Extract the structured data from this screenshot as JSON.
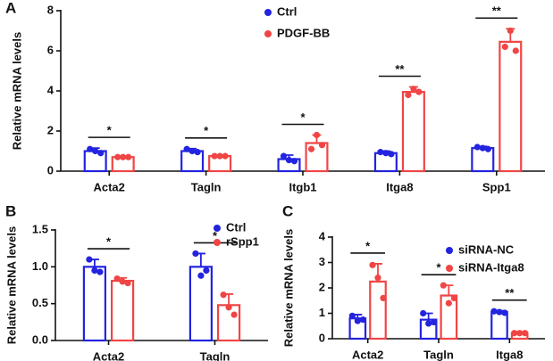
{
  "chart_data": [
    {
      "type": "bar",
      "panel": "A",
      "y_label": "Relative mRNA levels",
      "categories": [
        "Acta2",
        "Tagln",
        "Itgb1",
        "Itga8",
        "Spp1"
      ],
      "ylim": [
        0,
        8
      ],
      "yticks": [
        0,
        2,
        4,
        6,
        8
      ],
      "significance": [
        "*",
        "*",
        "*",
        "**",
        "**"
      ],
      "series": [
        {
          "name": "Ctrl",
          "color": "#2323e0",
          "values": [
            1.0,
            1.0,
            0.6,
            0.9,
            1.15
          ],
          "errors": [
            0.15,
            0.12,
            0.2,
            0.1,
            0.08
          ],
          "points": [
            [
              1.1,
              1.0,
              0.9
            ],
            [
              1.1,
              1.0,
              0.95
            ],
            [
              0.75,
              0.55,
              0.5
            ],
            [
              0.95,
              0.9,
              0.85
            ],
            [
              1.2,
              1.15,
              1.1
            ]
          ]
        },
        {
          "name": "PDGF-BB",
          "color": "#f04545",
          "values": [
            0.7,
            0.75,
            1.4,
            3.95,
            6.45
          ],
          "errors": [
            0.05,
            0.05,
            0.4,
            0.25,
            0.65
          ],
          "points": [
            [
              0.7,
              0.7,
              0.7
            ],
            [
              0.75,
              0.75,
              0.75
            ],
            [
              1.1,
              1.8,
              1.3
            ],
            [
              3.8,
              4.1,
              3.95
            ],
            [
              6.2,
              7.0,
              6.0
            ]
          ]
        }
      ]
    },
    {
      "type": "bar",
      "panel": "B",
      "y_label": "Relative mRNA levels",
      "categories": [
        "Acta2",
        "Tagln"
      ],
      "ylim": [
        0,
        1.5
      ],
      "yticks": [
        {
          "value": 0,
          "label": "0.0"
        },
        0.5,
        {
          "value": 1,
          "label": "1.0"
        },
        1.5
      ],
      "significance": [
        "*",
        "*"
      ],
      "series": [
        {
          "name": "Ctrl",
          "color": "#2323e0",
          "values": [
            1.0,
            1.0
          ],
          "errors": [
            0.1,
            0.18
          ],
          "points": [
            [
              1.1,
              0.95,
              0.93
            ],
            [
              1.18,
              0.88,
              0.95
            ]
          ]
        },
        {
          "name": "rSpp1",
          "color": "#f04545",
          "values": [
            0.81,
            0.48
          ],
          "errors": [
            0.04,
            0.15
          ],
          "points": [
            [
              0.84,
              0.8,
              0.78
            ],
            [
              0.62,
              0.45,
              0.35
            ]
          ]
        }
      ]
    },
    {
      "type": "bar",
      "panel": "C",
      "y_label": "Relative mRNA levels",
      "categories": [
        "Acta2",
        "Tagln",
        "Itga8"
      ],
      "ylim": [
        0,
        4
      ],
      "yticks": [
        0,
        1,
        2,
        3,
        4
      ],
      "significance": [
        "*",
        "*",
        "**"
      ],
      "series": [
        {
          "name": "siRNA-NC",
          "color": "#2323e0",
          "values": [
            0.8,
            0.75,
            1.05
          ],
          "errors": [
            0.15,
            0.25,
            0.05
          ],
          "points": [
            [
              0.9,
              0.7,
              0.75
            ],
            [
              1.0,
              0.6,
              0.65
            ],
            [
              1.08,
              1.05,
              1.02
            ]
          ]
        },
        {
          "name": "siRNA-Itga8",
          "color": "#f04545",
          "values": [
            2.25,
            1.7,
            0.22
          ],
          "errors": [
            0.7,
            0.4,
            0.05
          ],
          "points": [
            [
              2.9,
              2.4,
              1.6
            ],
            [
              2.1,
              1.4,
              1.6
            ],
            [
              0.22,
              0.22,
              0.22
            ]
          ]
        }
      ]
    }
  ]
}
